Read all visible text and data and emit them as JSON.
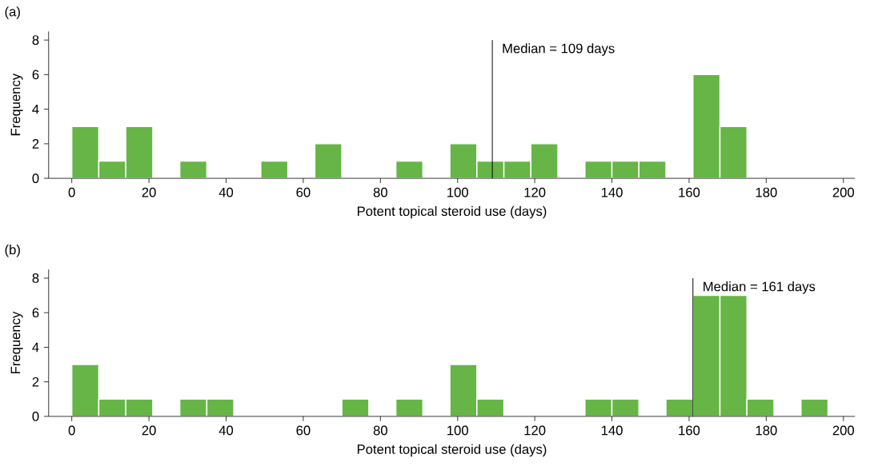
{
  "chart_data": [
    {
      "type": "histogram",
      "title": "(a)",
      "xlabel": "Potent topical steroid use (days)",
      "ylabel": "Frequency",
      "color": "#66b546",
      "bins": [
        0,
        7,
        14,
        21,
        28,
        35,
        42,
        49,
        56,
        63,
        70,
        77,
        84,
        91,
        98,
        105,
        112,
        119,
        126,
        133,
        140,
        147,
        154,
        161,
        168,
        175,
        182,
        189,
        196
      ],
      "values": [
        3,
        1,
        3,
        0,
        1,
        0,
        0,
        1,
        0,
        2,
        0,
        0,
        1,
        0,
        2,
        1,
        1,
        2,
        0,
        1,
        1,
        1,
        0,
        6,
        3,
        0,
        0,
        0
      ],
      "xlim": [
        -6,
        203
      ],
      "ylim": [
        0,
        8.5
      ],
      "xticks": [
        0,
        20,
        40,
        60,
        80,
        100,
        120,
        140,
        160,
        180,
        200
      ],
      "yticks": [
        0,
        2,
        4,
        6,
        8
      ],
      "ref_lines": [
        {
          "axis": "x",
          "value": 109,
          "label": "Median = 109 days",
          "color": "#000000"
        }
      ]
    },
    {
      "type": "histogram",
      "title": "(b)",
      "xlabel": "Potent topical steroid use (days)",
      "ylabel": "Frequency",
      "color": "#66b546",
      "bins": [
        0,
        7,
        14,
        21,
        28,
        35,
        42,
        49,
        56,
        63,
        70,
        77,
        84,
        91,
        98,
        105,
        112,
        119,
        126,
        133,
        140,
        147,
        154,
        161,
        168,
        175,
        182,
        189,
        196
      ],
      "values": [
        3,
        1,
        1,
        0,
        1,
        1,
        0,
        0,
        0,
        0,
        1,
        0,
        1,
        0,
        3,
        1,
        0,
        0,
        0,
        1,
        1,
        0,
        1,
        7,
        7,
        1,
        0,
        1
      ],
      "xlim": [
        -6,
        203
      ],
      "ylim": [
        0,
        8.5
      ],
      "xticks": [
        0,
        20,
        40,
        60,
        80,
        100,
        120,
        140,
        160,
        180,
        200
      ],
      "yticks": [
        0,
        2,
        4,
        6,
        8
      ],
      "ref_lines": [
        {
          "axis": "x",
          "value": 161,
          "label": "Median = 161 days",
          "color": "#000000"
        }
      ]
    }
  ]
}
